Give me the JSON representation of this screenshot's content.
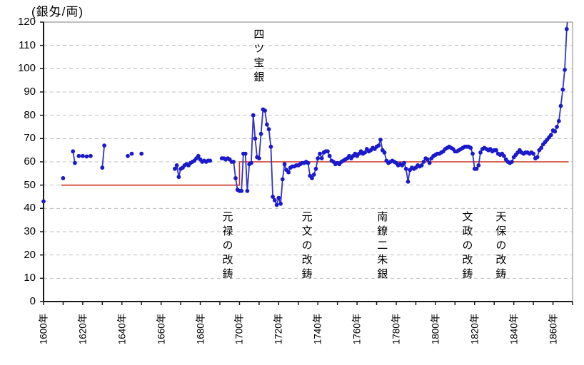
{
  "chart_data": {
    "type": "scatter",
    "title": "(銀匁/両)",
    "legend_position": "none",
    "grid": {
      "horizontal": "dashed",
      "vertical": "none"
    },
    "x_axis": {
      "min": 1600,
      "max": 1870,
      "minor_tick_step": 10,
      "tick_labels": [
        {
          "year": 1600,
          "label": "1600年"
        },
        {
          "year": 1620,
          "label": "1620年"
        },
        {
          "year": 1640,
          "label": "1640年"
        },
        {
          "year": 1660,
          "label": "1660年"
        },
        {
          "year": 1680,
          "label": "1680年"
        },
        {
          "year": 1700,
          "label": "1700年"
        },
        {
          "year": 1720,
          "label": "1720年"
        },
        {
          "year": 1740,
          "label": "1740年"
        },
        {
          "year": 1760,
          "label": "1760年"
        },
        {
          "year": 1780,
          "label": "1780年"
        },
        {
          "year": 1800,
          "label": "1800年"
        },
        {
          "year": 1820,
          "label": "1820年"
        },
        {
          "year": 1840,
          "label": "1840年"
        },
        {
          "year": 1860,
          "label": "1860年"
        }
      ]
    },
    "y_axis": {
      "min": 0,
      "max": 120,
      "tick_step": 10,
      "tick_labels": [
        {
          "value": 0,
          "label": "0"
        },
        {
          "value": 10,
          "label": "10"
        },
        {
          "value": 20,
          "label": "20"
        },
        {
          "value": 30,
          "label": "30"
        },
        {
          "value": 40,
          "label": "40"
        },
        {
          "value": 50,
          "label": "50"
        },
        {
          "value": 60,
          "label": "60"
        },
        {
          "value": 70,
          "label": "70"
        },
        {
          "value": 80,
          "label": "80"
        },
        {
          "value": 90,
          "label": "90"
        },
        {
          "value": 100,
          "label": "100"
        },
        {
          "value": 110,
          "label": "110"
        },
        {
          "value": 120,
          "label": "120"
        }
      ]
    },
    "series": [
      {
        "name": "market-exchange-rate",
        "style": "line-with-markers",
        "line_color": "#3333cc",
        "marker_color": "#1a1acc",
        "connect_rule": "consecutive-years-only",
        "points": [
          [
            1600,
            43
          ],
          [
            1610,
            53
          ],
          [
            1615,
            64.5
          ],
          [
            1616,
            59.5
          ],
          [
            1618,
            62.5
          ],
          [
            1620,
            62.5
          ],
          [
            1622,
            62.3
          ],
          [
            1624,
            62.5
          ],
          [
            1630,
            57.5
          ],
          [
            1631,
            67
          ],
          [
            1643,
            62.5
          ],
          [
            1645,
            63.5
          ],
          [
            1650,
            63.5
          ],
          [
            1667,
            57
          ],
          [
            1668,
            58.5
          ],
          [
            1669,
            53.5
          ],
          [
            1670,
            57
          ],
          [
            1671,
            57.5
          ],
          [
            1672,
            58.5
          ],
          [
            1673,
            59
          ],
          [
            1674,
            58.5
          ],
          [
            1675,
            59.5
          ],
          [
            1676,
            60
          ],
          [
            1677,
            60.5
          ],
          [
            1678,
            61.5
          ],
          [
            1679,
            62.5
          ],
          [
            1680,
            61
          ],
          [
            1681,
            60
          ],
          [
            1682,
            60.5
          ],
          [
            1683,
            60
          ],
          [
            1684,
            60.5
          ],
          [
            1685,
            60.5
          ],
          [
            1691,
            61.5
          ],
          [
            1692,
            61.5
          ],
          [
            1693,
            61
          ],
          [
            1694,
            61.5
          ],
          [
            1695,
            61
          ],
          [
            1696,
            60
          ],
          [
            1697,
            60
          ],
          [
            1698,
            53
          ],
          [
            1699,
            48
          ],
          [
            1700,
            47.5
          ],
          [
            1701,
            47.5
          ],
          [
            1702,
            63.5
          ],
          [
            1703,
            63.5
          ],
          [
            1704,
            47.5
          ],
          [
            1705,
            59
          ],
          [
            1706,
            59.5
          ],
          [
            1707,
            80
          ],
          [
            1708,
            70
          ],
          [
            1709,
            62
          ],
          [
            1710,
            61.5
          ],
          [
            1711,
            72
          ],
          [
            1712,
            82.5
          ],
          [
            1713,
            82
          ],
          [
            1714,
            76
          ],
          [
            1715,
            74
          ],
          [
            1716,
            66.5
          ],
          [
            1717,
            45
          ],
          [
            1718,
            43.5
          ],
          [
            1719,
            41.5
          ],
          [
            1720,
            44.5
          ],
          [
            1721,
            42
          ],
          [
            1722,
            52.5
          ],
          [
            1723,
            59
          ],
          [
            1724,
            56.5
          ],
          [
            1725,
            55.5
          ],
          [
            1726,
            57.5
          ],
          [
            1727,
            58
          ],
          [
            1728,
            58
          ],
          [
            1729,
            58.5
          ],
          [
            1730,
            58.5
          ],
          [
            1731,
            59
          ],
          [
            1732,
            59.5
          ],
          [
            1733,
            59.5
          ],
          [
            1734,
            60
          ],
          [
            1735,
            59.5
          ],
          [
            1736,
            54
          ],
          [
            1737,
            53
          ],
          [
            1738,
            54.5
          ],
          [
            1739,
            57
          ],
          [
            1740,
            61.5
          ],
          [
            1741,
            63.5
          ],
          [
            1742,
            61.5
          ],
          [
            1743,
            64
          ],
          [
            1744,
            64.5
          ],
          [
            1745,
            64.5
          ],
          [
            1746,
            62.5
          ],
          [
            1747,
            60.5
          ],
          [
            1748,
            60
          ],
          [
            1749,
            59
          ],
          [
            1750,
            59.5
          ],
          [
            1751,
            59
          ],
          [
            1752,
            60
          ],
          [
            1753,
            60.5
          ],
          [
            1754,
            61
          ],
          [
            1755,
            61.5
          ],
          [
            1756,
            62.5
          ],
          [
            1757,
            61.5
          ],
          [
            1758,
            62.5
          ],
          [
            1759,
            63.5
          ],
          [
            1760,
            62.5
          ],
          [
            1761,
            63.5
          ],
          [
            1762,
            64.5
          ],
          [
            1763,
            63.5
          ],
          [
            1764,
            64
          ],
          [
            1765,
            65.5
          ],
          [
            1766,
            64.5
          ],
          [
            1767,
            65
          ],
          [
            1768,
            66
          ],
          [
            1769,
            65.5
          ],
          [
            1770,
            66.5
          ],
          [
            1771,
            67
          ],
          [
            1772,
            69.5
          ],
          [
            1773,
            65
          ],
          [
            1774,
            64
          ],
          [
            1775,
            60.5
          ],
          [
            1776,
            59.5
          ],
          [
            1777,
            60
          ],
          [
            1778,
            60.5
          ],
          [
            1779,
            60
          ],
          [
            1780,
            59.5
          ],
          [
            1781,
            58.5
          ],
          [
            1782,
            59
          ],
          [
            1783,
            58.5
          ],
          [
            1784,
            59.5
          ],
          [
            1785,
            57
          ],
          [
            1786,
            51.5
          ],
          [
            1787,
            56.5
          ],
          [
            1788,
            57.5
          ],
          [
            1789,
            57
          ],
          [
            1790,
            57.5
          ],
          [
            1791,
            58.5
          ],
          [
            1792,
            58
          ],
          [
            1793,
            58.5
          ],
          [
            1794,
            60
          ],
          [
            1795,
            61.5
          ],
          [
            1796,
            61
          ],
          [
            1797,
            59.5
          ],
          [
            1798,
            61.5
          ],
          [
            1799,
            62.5
          ],
          [
            1800,
            63
          ],
          [
            1801,
            63.5
          ],
          [
            1802,
            63.5
          ],
          [
            1803,
            64
          ],
          [
            1804,
            64.5
          ],
          [
            1805,
            65.5
          ],
          [
            1806,
            66
          ],
          [
            1807,
            66.5
          ],
          [
            1808,
            66
          ],
          [
            1809,
            65.5
          ],
          [
            1810,
            64.5
          ],
          [
            1811,
            64.5
          ],
          [
            1812,
            65
          ],
          [
            1813,
            65.5
          ],
          [
            1814,
            66
          ],
          [
            1815,
            66.5
          ],
          [
            1816,
            66.5
          ],
          [
            1817,
            66.5
          ],
          [
            1818,
            66
          ],
          [
            1819,
            63.5
          ],
          [
            1820,
            57
          ],
          [
            1821,
            57
          ],
          [
            1822,
            58.5
          ],
          [
            1823,
            64
          ],
          [
            1824,
            65.5
          ],
          [
            1825,
            66
          ],
          [
            1826,
            65.5
          ],
          [
            1827,
            65
          ],
          [
            1828,
            65.5
          ],
          [
            1829,
            64.5
          ],
          [
            1830,
            65
          ],
          [
            1831,
            65
          ],
          [
            1832,
            63.5
          ],
          [
            1833,
            63
          ],
          [
            1834,
            63.5
          ],
          [
            1835,
            62.5
          ],
          [
            1836,
            61
          ],
          [
            1837,
            60
          ],
          [
            1838,
            59.5
          ],
          [
            1839,
            60
          ],
          [
            1840,
            62
          ],
          [
            1841,
            63
          ],
          [
            1842,
            64
          ],
          [
            1843,
            65
          ],
          [
            1844,
            64
          ],
          [
            1845,
            63.5
          ],
          [
            1846,
            64
          ],
          [
            1847,
            64
          ],
          [
            1848,
            63.5
          ],
          [
            1849,
            64
          ],
          [
            1850,
            63.5
          ],
          [
            1851,
            61.5
          ],
          [
            1852,
            62
          ],
          [
            1853,
            65
          ],
          [
            1854,
            66
          ],
          [
            1855,
            67.5
          ],
          [
            1856,
            68.5
          ],
          [
            1857,
            69.5
          ],
          [
            1858,
            70.5
          ],
          [
            1859,
            71.5
          ],
          [
            1860,
            73.5
          ],
          [
            1861,
            73
          ],
          [
            1862,
            75
          ],
          [
            1863,
            77.5
          ],
          [
            1864,
            84
          ],
          [
            1865,
            91
          ],
          [
            1866,
            99.5
          ],
          [
            1867,
            117
          ],
          [
            1868,
            126
          ]
        ]
      }
    ],
    "reference_line": {
      "name": "official-fixed-rate",
      "color": "#cc3222",
      "points": [
        [
          1609,
          50
        ],
        [
          1700,
          50
        ],
        [
          1700,
          60
        ],
        [
          1868,
          60
        ]
      ]
    },
    "annotations": [
      {
        "label": "四ツ宝銀",
        "year": 1710,
        "placement": "top"
      },
      {
        "label": "元禄の改鋳",
        "year": 1694,
        "placement": "bottom"
      },
      {
        "label": "元文の改鋳",
        "year": 1734.5,
        "placement": "bottom"
      },
      {
        "label": "南鐐二朱銀",
        "year": 1773,
        "placement": "bottom"
      },
      {
        "label": "文政の改鋳",
        "year": 1816.4,
        "placement": "bottom"
      },
      {
        "label": "天保の改鋳",
        "year": 1833.5,
        "placement": "bottom"
      }
    ],
    "colors": {
      "grid": "#bfbfbf",
      "axis": "#1a1a1a",
      "plot_border": "#999999",
      "text": "#000000"
    }
  }
}
